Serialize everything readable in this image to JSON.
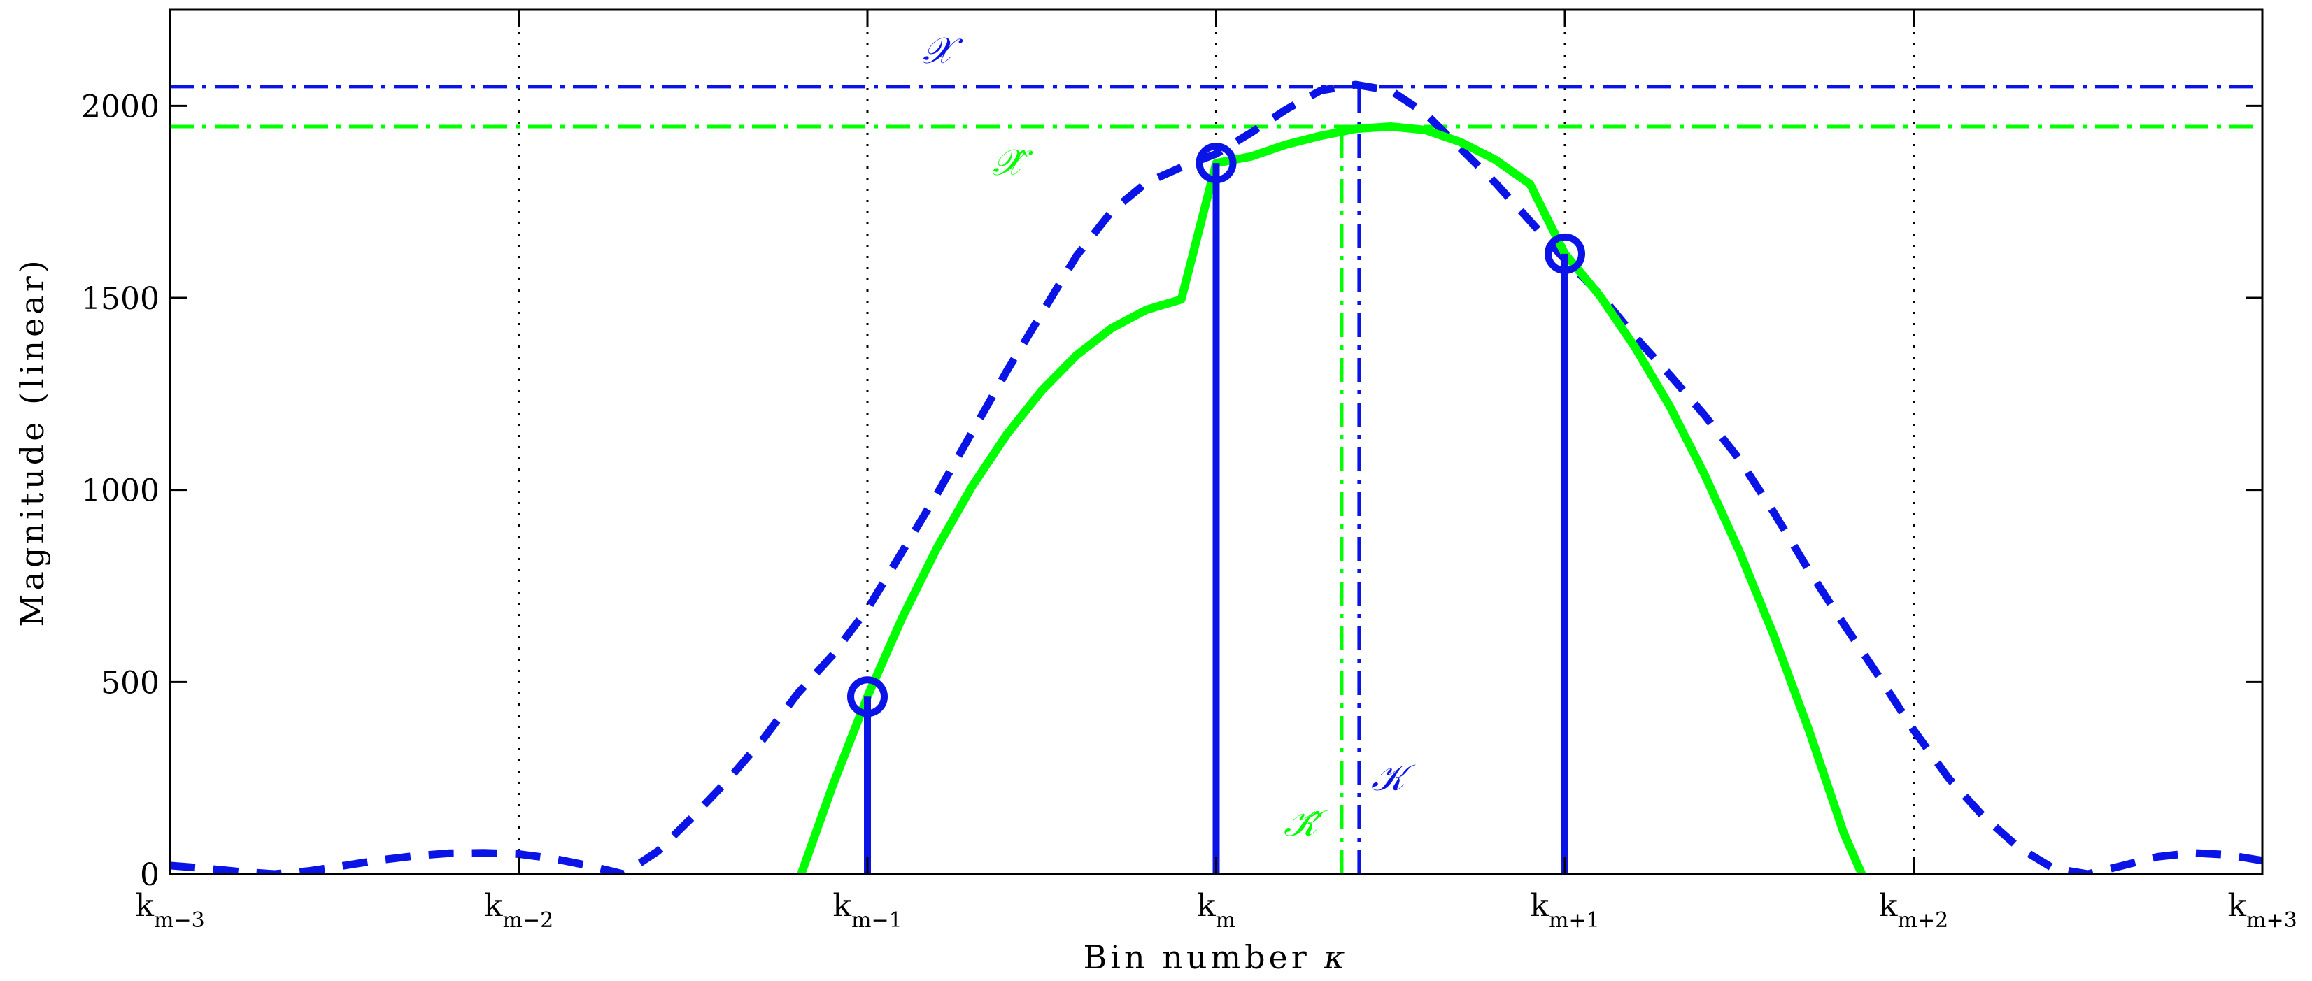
{
  "chart_data": {
    "type": "line",
    "xlabel": "Bin number",
    "xlabel_symbol": "κ",
    "ylabel": "Magnitude (linear)",
    "xlim": [
      -3,
      3
    ],
    "ylim": [
      0,
      2250
    ],
    "grid": "vertical dotted lines at bins",
    "x_ticks": [
      {
        "value": -3,
        "base": "k",
        "sub": "m−3"
      },
      {
        "value": -2,
        "base": "k",
        "sub": "m−2"
      },
      {
        "value": -1,
        "base": "k",
        "sub": "m−1"
      },
      {
        "value": 0,
        "base": "k",
        "sub": "m"
      },
      {
        "value": 1,
        "base": "k",
        "sub": "m+1"
      },
      {
        "value": 2,
        "base": "k",
        "sub": "m+2"
      },
      {
        "value": 3,
        "base": "k",
        "sub": "m+3"
      }
    ],
    "y_ticks": [
      {
        "value": 0,
        "label": "0"
      },
      {
        "value": 500,
        "label": "500"
      },
      {
        "value": 1000,
        "label": "1000"
      },
      {
        "value": 1500,
        "label": "1500"
      },
      {
        "value": 2000,
        "label": "2000"
      }
    ],
    "series": [
      {
        "style": "dashed",
        "color": "#0a14e6",
        "x": [
          -3.0,
          -2.9,
          -2.8,
          -2.7,
          -2.6,
          -2.5,
          -2.4,
          -2.3,
          -2.2,
          -2.1,
          -2.0,
          -1.9,
          -1.8,
          -1.7,
          -1.6,
          -1.5,
          -1.4,
          -1.3,
          -1.2,
          -1.1,
          -1.0,
          -0.9,
          -0.8,
          -0.7,
          -0.6,
          -0.5,
          -0.4,
          -0.3,
          -0.2,
          -0.1,
          0.0,
          0.1,
          0.2,
          0.3,
          0.4,
          0.5,
          0.6,
          0.7,
          0.8,
          0.9,
          1.0,
          1.1,
          1.2,
          1.3,
          1.4,
          1.5,
          1.6,
          1.7,
          1.8,
          1.9,
          2.0,
          2.1,
          2.2,
          2.3,
          2.4,
          2.5,
          2.6,
          2.7,
          2.8,
          2.9,
          3.0
        ],
        "y": [
          22,
          15,
          6,
          0,
          8,
          22,
          36,
          47,
          54,
          55,
          52,
          40,
          22,
          0,
          60,
          150,
          245,
          350,
          470,
          570,
          690,
          840,
          990,
          1150,
          1310,
          1460,
          1610,
          1725,
          1800,
          1840,
          1875,
          1930,
          1990,
          2040,
          2055,
          2040,
          1980,
          1890,
          1800,
          1700,
          1600,
          1510,
          1400,
          1300,
          1195,
          1080,
          940,
          790,
          650,
          515,
          375,
          250,
          150,
          70,
          15,
          0,
          22,
          45,
          55,
          50,
          35
        ],
        "line_width": 11
      },
      {
        "style": "solid",
        "color": "#00ff00",
        "x": [
          -1.19,
          -1.1,
          -1.0,
          -0.9,
          -0.8,
          -0.7,
          -0.6,
          -0.5,
          -0.4,
          -0.3,
          -0.2,
          -0.1,
          0.0,
          0.1,
          0.2,
          0.3,
          0.4,
          0.5,
          0.6,
          0.7,
          0.8,
          0.9,
          1.0,
          1.1,
          1.2,
          1.3,
          1.4,
          1.5,
          1.6,
          1.7,
          1.8,
          1.9,
          1.93
        ],
        "y": [
          0,
          230,
          462,
          668,
          850,
          1009,
          1145,
          1259,
          1351,
          1421,
          1469,
          1496,
          1851,
          1868,
          1899,
          1922,
          1940,
          1946,
          1937,
          1906,
          1860,
          1796,
          1615,
          1506,
          1373,
          1219,
          1041,
          841,
          619,
          374,
          106,
          -100,
          -150
        ],
        "line_width": 12
      }
    ],
    "samples": [
      {
        "x": -1,
        "y": 462
      },
      {
        "x": 0,
        "y": 1851
      },
      {
        "x": 1,
        "y": 1615
      }
    ],
    "reference_lines": [
      {
        "orientation": "horizontal",
        "y": 2050,
        "color": "#0a14e6",
        "style": "dashdot",
        "label": "𝒳"
      },
      {
        "orientation": "horizontal",
        "y": 1946,
        "color": "#00ff00",
        "style": "dashdot",
        "label": "𝒳̂"
      },
      {
        "orientation": "vertical",
        "x": 0.41,
        "y_end": 2055,
        "color": "#0a14e6",
        "style": "dashdot",
        "label": "𝒦"
      },
      {
        "orientation": "vertical",
        "x": 0.36,
        "y_end": 1946,
        "color": "#00ff00",
        "style": "dashdot",
        "label": "𝒦̂"
      }
    ],
    "colors": {
      "blue": "#0a14e6",
      "green": "#00ff00"
    }
  }
}
